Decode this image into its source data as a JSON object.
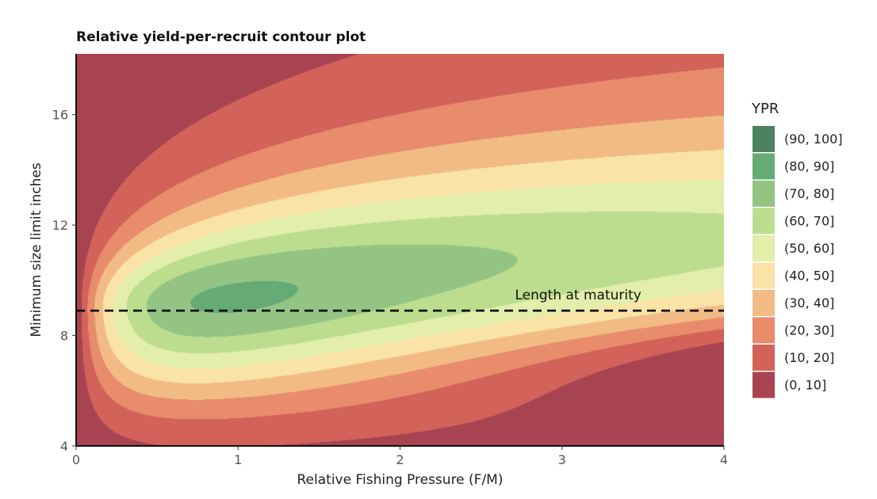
{
  "chart_data": {
    "type": "contour",
    "title": "Relative yield-per-recruit contour plot",
    "xlabel": "Relative Fishing Pressure (F/M)",
    "ylabel": "Minimum size limit inches",
    "xlim": [
      0,
      4
    ],
    "ylim": [
      4,
      18.2
    ],
    "xticks": [
      0,
      1,
      2,
      3,
      4
    ],
    "yticks": [
      4,
      8,
      12,
      16
    ],
    "grid": false,
    "legend": {
      "title": "YPR",
      "position": "right",
      "entries": [
        {
          "label": "(90, 100]",
          "color": "#4e8160"
        },
        {
          "label": "(80, 90]",
          "color": "#66aa75"
        },
        {
          "label": "(70, 80]",
          "color": "#93c484"
        },
        {
          "label": "(60, 70]",
          "color": "#bcdd8e"
        },
        {
          "label": "(50, 60]",
          "color": "#e2eeaa"
        },
        {
          "label": "(40, 50]",
          "color": "#f9e3a6"
        },
        {
          "label": "(30, 40]",
          "color": "#f2bb86"
        },
        {
          "label": "(20, 30]",
          "color": "#e88c6b"
        },
        {
          "label": "(10, 20]",
          "color": "#d2625a"
        },
        {
          "label": "(0, 10]",
          "color": "#a84352"
        }
      ]
    },
    "model": {
      "description": "relative yield-per-recruit surface over F/M and minimum size limit",
      "peak_size_limit": 9,
      "peak_value": 100
    },
    "reference_line": {
      "y": 8.9,
      "style": "dashed",
      "label": "Length at maturity",
      "label_x": 3.1
    }
  }
}
